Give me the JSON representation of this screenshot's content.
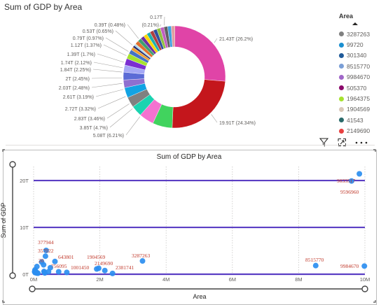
{
  "donut": {
    "title": "Sum of GDP by Area",
    "labels": [
      {
        "text": "21.43T (26.2%)"
      },
      {
        "text": "19.91T (24.34%)"
      },
      {
        "text": "5.08T (6.21%)"
      },
      {
        "text": "3.85T (4.7%)"
      },
      {
        "text": "2.83T (3.46%)"
      },
      {
        "text": "2.72T (3.32%)"
      },
      {
        "text": "2.61T (3.19%)"
      },
      {
        "text": "2.03T (2.48%)"
      },
      {
        "text": "2T (2.45%)"
      },
      {
        "text": "1.84T (2.25%)"
      },
      {
        "text": "1.74T (2.12%)"
      },
      {
        "text": "1.39T (1.7%)"
      },
      {
        "text": "1.12T (1.37%)"
      },
      {
        "text": "0.79T (0.97%)"
      },
      {
        "text": "0.53T (0.65%)"
      },
      {
        "text": "0.39T (0.48%)"
      },
      {
        "text": "(0.21%)"
      },
      {
        "text": "0.17T"
      }
    ],
    "slice_values": [
      26.2,
      24.34,
      6.21,
      4.7,
      3.46,
      3.32,
      3.19,
      2.48,
      2.45,
      2.25,
      2.12,
      1.7,
      1.37,
      0.97,
      0.65,
      0.48,
      0.21
    ],
    "slice_colors": [
      "#e044a7",
      "#c4161c",
      "#41d35e",
      "#f472d0",
      "#1ad3b0",
      "#808080",
      "#12a3e3",
      "#8f6fd0",
      "#5b6bd6",
      "#a5a8f5",
      "#7b2ed1",
      "#a6e22e",
      "#4472c4",
      "#f0a030",
      "#2a2a6a",
      "#9bd1f0",
      "#d8d8a0"
    ],
    "tiny_colors": [
      "#e07030",
      "#3fa070",
      "#7030a0",
      "#ffd700",
      "#20b0b0",
      "#b04040",
      "#3050a0",
      "#90c040",
      "#c060c0",
      "#606060",
      "#40a0e0",
      "#e0a0a0"
    ]
  },
  "legend": {
    "title": "Area",
    "items": [
      {
        "label": "3287263",
        "color": "#808080"
      },
      {
        "label": "99720",
        "color": "#1a8fd0"
      },
      {
        "label": "301340",
        "color": "#1f5a99"
      },
      {
        "label": "8515770",
        "color": "#7a9ed6"
      },
      {
        "label": "9984670",
        "color": "#a066c8"
      },
      {
        "label": "505370",
        "color": "#8b0a6b"
      },
      {
        "label": "1964375",
        "color": "#a6e22e"
      },
      {
        "label": "1904569",
        "color": "#d9c8b8"
      },
      {
        "label": "41543",
        "color": "#2a6a6a"
      },
      {
        "label": "2149690",
        "color": "#e84040"
      }
    ]
  },
  "scatter": {
    "title": "Sum of GDP by Area",
    "xlabel": "Area",
    "ylabel": "Sum of GDP",
    "xticks": [
      "0M",
      "2M",
      "4M",
      "6M",
      "8M",
      "10M"
    ],
    "yticks": [
      "0T",
      "10T",
      "20T"
    ],
    "point_labels": [
      {
        "text": "9833517"
      },
      {
        "text": "9596960"
      },
      {
        "text": "377944"
      },
      {
        "text": "357022"
      },
      {
        "text": "643801"
      },
      {
        "text": "1904569"
      },
      {
        "text": "3287263"
      },
      {
        "text": "2149690"
      },
      {
        "text": "1001450"
      },
      {
        "text": "2381741"
      },
      {
        "text": "8515770"
      },
      {
        "text": "9984670"
      },
      {
        "text": "756095"
      },
      {
        "text": "20"
      }
    ]
  },
  "chart_data": {
    "type": "scatter",
    "title": "Sum of GDP by Area",
    "xlabel": "Area",
    "ylabel": "Sum of GDP",
    "xlim": [
      0,
      10000000
    ],
    "ylim": [
      0,
      23000000000000
    ],
    "x_ticks": [
      "0M",
      "2M",
      "4M",
      "6M",
      "8M",
      "10M"
    ],
    "y_ticks": [
      "0T",
      "10T",
      "20T"
    ],
    "points": [
      {
        "area": 9833517,
        "gdp": 21430000000000,
        "label": "9833517"
      },
      {
        "area": 9596960,
        "gdp": 19910000000000,
        "label": "9596960"
      },
      {
        "area": 377944,
        "gdp": 5080000000000,
        "label": "377944"
      },
      {
        "area": 357022,
        "gdp": 3850000000000,
        "label": "357022"
      },
      {
        "area": 643801,
        "gdp": 2720000000000,
        "label": "643801"
      },
      {
        "area": 1904569,
        "gdp": 1120000000000,
        "label": "1904569"
      },
      {
        "area": 3287263,
        "gdp": 2830000000000,
        "label": "3287263"
      },
      {
        "area": 2149690,
        "gdp": 790000000000,
        "label": "2149690"
      },
      {
        "area": 1001450,
        "gdp": 390000000000,
        "label": "1001450"
      },
      {
        "area": 2381741,
        "gdp": 170000000000,
        "label": "2381741"
      },
      {
        "area": 8515770,
        "gdp": 1840000000000,
        "label": "8515770"
      },
      {
        "area": 9984670,
        "gdp": 1740000000000,
        "label": "9984670"
      },
      {
        "area": 756095,
        "gdp": 530000000000,
        "label": "756095"
      },
      {
        "area": 242495,
        "gdp": 2610000000000
      },
      {
        "area": 301340,
        "gdp": 2000000000000
      },
      {
        "area": 505370,
        "gdp": 1390000000000
      },
      {
        "area": 1964375,
        "gdp": 1270000000000
      },
      {
        "area": 99720,
        "gdp": 1640000000000
      },
      {
        "area": 41543,
        "gdp": 910000000000
      },
      {
        "area": 41284,
        "gdp": 700000000000
      },
      {
        "area": 450295,
        "gdp": 530000000000
      },
      {
        "area": 83871,
        "gdp": 450000000000
      },
      {
        "area": 30528,
        "gdp": 530000000000
      },
      {
        "area": 43094,
        "gdp": 350000000000
      },
      {
        "area": 312685,
        "gdp": 590000000000
      },
      {
        "area": 92212,
        "gdp": 240000000000
      },
      {
        "area": 70273,
        "gdp": 390000000000
      },
      {
        "area": 131957,
        "gdp": 210000000000
      },
      {
        "area": 338145,
        "gdp": 270000000000
      },
      {
        "area": 323802,
        "gdp": 400000000000
      }
    ],
    "reference_lines_gdp": [
      20000000000000,
      10000000000000,
      0
    ]
  }
}
